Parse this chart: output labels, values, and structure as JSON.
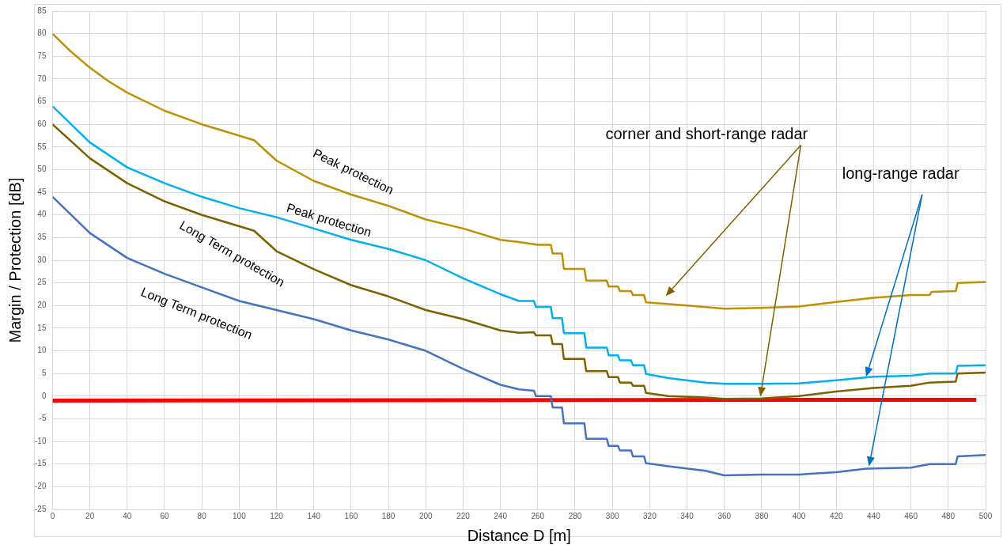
{
  "chart_data": {
    "type": "line",
    "xlabel": "Distance D [m]",
    "ylabel": "Margin / Protection [dB]",
    "xlim": [
      0,
      500
    ],
    "xticks": [
      0,
      20,
      40,
      60,
      80,
      100,
      120,
      140,
      160,
      180,
      200,
      220,
      240,
      260,
      280,
      300,
      320,
      340,
      360,
      380,
      400,
      420,
      440,
      460,
      480,
      500
    ],
    "ylim": [
      -25,
      85
    ],
    "yticks": [
      -25,
      -20,
      -15,
      -10,
      -5,
      0,
      5,
      10,
      15,
      20,
      25,
      30,
      35,
      40,
      45,
      50,
      55,
      60,
      65,
      70,
      75,
      80,
      85
    ],
    "grid": true,
    "legend": false,
    "marker": "none",
    "line_style": "solid",
    "series": [
      {
        "color": "#bf9000",
        "x": [
          0,
          10,
          20,
          30,
          40,
          60,
          80,
          100,
          108,
          120,
          140,
          160,
          180,
          200,
          220,
          240,
          250,
          260,
          267,
          268,
          273,
          274,
          285,
          286,
          297,
          298,
          303,
          304,
          310,
          311,
          317,
          318,
          325,
          340,
          360,
          380,
          400,
          420,
          440,
          460,
          470,
          471,
          484,
          485,
          500
        ],
        "values": [
          80,
          76,
          72.5,
          69.5,
          67,
          63,
          60,
          57.5,
          56.5,
          52,
          47.5,
          44.5,
          42,
          39,
          37,
          34.5,
          34,
          33.4,
          33.4,
          31.5,
          31.5,
          28.1,
          28.1,
          25.5,
          25.5,
          24.2,
          24.2,
          23.2,
          23.2,
          22.3,
          22.3,
          20.7,
          20.5,
          20,
          19.3,
          19.5,
          19.8,
          20.8,
          21.7,
          22.3,
          22.3,
          23,
          23.2,
          25,
          25.2
        ]
      },
      {
        "color": "#00b0f0",
        "x": [
          0,
          20,
          40,
          60,
          80,
          100,
          120,
          140,
          160,
          180,
          200,
          220,
          240,
          250,
          258,
          259,
          267,
          268,
          273,
          274,
          285,
          286,
          297,
          298,
          303,
          304,
          310,
          311,
          317,
          318,
          330,
          350,
          360,
          380,
          400,
          420,
          440,
          460,
          470,
          484,
          485,
          500
        ],
        "values": [
          64,
          56,
          50.5,
          47,
          44,
          41.5,
          39.5,
          37,
          34.5,
          32.5,
          30,
          26,
          22.5,
          21,
          21,
          19.7,
          19.7,
          17.2,
          17.2,
          13.9,
          13.9,
          10.7,
          10.7,
          9,
          9,
          7.9,
          7.9,
          6.8,
          6.8,
          4.9,
          4,
          3,
          2.7,
          2.7,
          2.8,
          3.5,
          4.3,
          4.5,
          5,
          5,
          6.7,
          6.8
        ]
      },
      {
        "color": "#7f6000",
        "x": [
          0,
          20,
          40,
          60,
          80,
          100,
          108,
          120,
          140,
          160,
          180,
          200,
          220,
          240,
          250,
          258,
          259,
          267,
          268,
          273,
          274,
          285,
          286,
          297,
          298,
          303,
          304,
          310,
          311,
          317,
          318,
          330,
          350,
          360,
          380,
          400,
          420,
          440,
          460,
          470,
          484,
          485,
          500
        ],
        "values": [
          60,
          52.5,
          47,
          43,
          40,
          37.5,
          36.5,
          32,
          28,
          24.5,
          22,
          19,
          17,
          14.5,
          14,
          14.1,
          13.4,
          13.4,
          11.5,
          11.5,
          8.2,
          8.2,
          5.5,
          5.5,
          4.2,
          4.2,
          3,
          3,
          2.3,
          2.3,
          0.7,
          0,
          -0.3,
          -0.6,
          -0.5,
          0,
          1,
          1.8,
          2.3,
          3,
          3.2,
          5,
          5.2
        ]
      },
      {
        "color": "#4472c4",
        "x": [
          0,
          20,
          40,
          60,
          80,
          100,
          120,
          140,
          160,
          180,
          200,
          220,
          240,
          250,
          258,
          259,
          267,
          268,
          273,
          274,
          285,
          286,
          297,
          298,
          303,
          304,
          310,
          311,
          317,
          318,
          330,
          350,
          360,
          380,
          400,
          420,
          436,
          460,
          470,
          484,
          485,
          500
        ],
        "values": [
          44,
          36,
          30.5,
          27,
          24,
          21,
          19,
          17,
          14.5,
          12.5,
          10,
          6,
          2.5,
          1.5,
          1.2,
          0,
          0,
          -2.5,
          -2.5,
          -6,
          -6,
          -9.4,
          -9.4,
          -11,
          -11,
          -12,
          -12,
          -13.3,
          -13.3,
          -14.8,
          -15.5,
          -16.5,
          -17.5,
          -17.3,
          -17.3,
          -16.8,
          -16,
          -15.8,
          -15,
          -15,
          -13.3,
          -13
        ]
      },
      {
        "color": "#ff0000",
        "x": [
          0,
          495
        ],
        "values": [
          -1,
          -0.8
        ]
      }
    ],
    "annotations": [
      "Peak protection",
      "Peak protection",
      "Long Term protection",
      "Long Term protection",
      "corner and short-range radar",
      "long-range radar"
    ]
  }
}
